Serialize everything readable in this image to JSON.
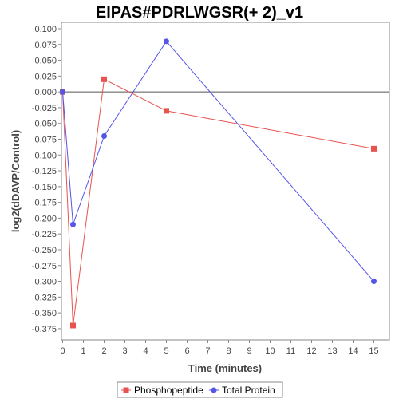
{
  "chart_data": {
    "type": "line",
    "title": "EIPAS#PDRLWGSR(+ 2)_v1",
    "xlabel": "Time (minutes)",
    "ylabel": "log2(dDAVP/Control)",
    "xlim": [
      0,
      15.5
    ],
    "ylim": [
      -0.4,
      0.1
    ],
    "x_ticks": [
      0,
      1,
      2,
      3,
      4,
      5,
      6,
      7,
      8,
      9,
      10,
      11,
      12,
      13,
      14,
      15
    ],
    "y_ticks": [
      0.1,
      0.075,
      0.05,
      0.025,
      0.0,
      -0.025,
      -0.05,
      -0.075,
      -0.1,
      -0.125,
      -0.15,
      -0.175,
      -0.2,
      -0.225,
      -0.25,
      -0.275,
      -0.3,
      -0.325,
      -0.35,
      -0.375
    ],
    "x_tick_labels": [
      "0",
      "1",
      "2",
      "3",
      "4",
      "5",
      "6",
      "7",
      "8",
      "9",
      "10",
      "11",
      "12",
      "13",
      "14",
      "15"
    ],
    "y_tick_labels": [
      "0.100",
      "0.075",
      "0.050",
      "0.025",
      "0.000",
      "-0.025",
      "-0.050",
      "-0.075",
      "-0.100",
      "-0.125",
      "-0.150",
      "-0.175",
      "-0.200",
      "-0.225",
      "-0.250",
      "-0.275",
      "-0.300",
      "-0.325",
      "-0.350",
      "-0.375"
    ],
    "grid": false,
    "zero_line": true,
    "legend_position": "bottom",
    "series": [
      {
        "name": "Phosphopeptide",
        "color": "#e8524f",
        "marker": "square",
        "x": [
          0,
          0.5,
          2,
          5,
          15
        ],
        "y": [
          0.0,
          -0.37,
          0.02,
          -0.03,
          -0.09
        ]
      },
      {
        "name": "Total Protein",
        "color": "#5555e8",
        "marker": "circle",
        "x": [
          0,
          0.5,
          2,
          5,
          15
        ],
        "y": [
          0.0,
          -0.21,
          -0.07,
          0.08,
          -0.3
        ]
      }
    ]
  }
}
